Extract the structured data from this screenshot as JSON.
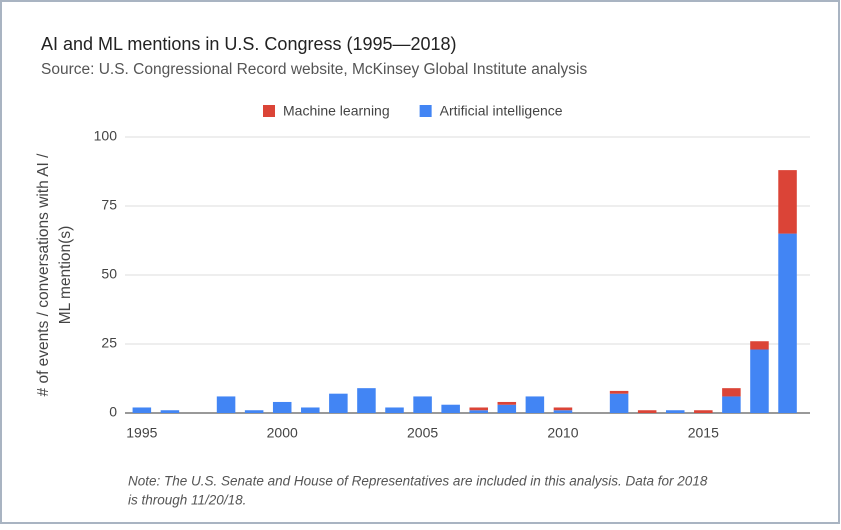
{
  "chart_data": {
    "type": "bar",
    "stacked": true,
    "title": "AI and ML mentions in U.S. Congress (1995—2018)",
    "subtitle": "Source: U.S. Congressional Record website, McKinsey Global Institute analysis",
    "y_label": [
      "# of events / conversations with AI /",
      "ML mention(s)"
    ],
    "note": [
      "Note: The U.S. Senate and House of Representatives are included in this analysis. Data for 2018",
      "is through 11/20/18."
    ],
    "x": [
      1995,
      1996,
      1997,
      1998,
      1999,
      2000,
      2001,
      2002,
      2003,
      2004,
      2005,
      2006,
      2007,
      2008,
      2009,
      2010,
      2011,
      2012,
      2013,
      2014,
      2015,
      2016,
      2017,
      2018
    ],
    "series": [
      {
        "name": "Machine learning",
        "color": "#db4437",
        "values": [
          0,
          0,
          0,
          0,
          0,
          0,
          0,
          0,
          0,
          0,
          0,
          0,
          1,
          1,
          0,
          1,
          0,
          1,
          1,
          0,
          1,
          3,
          3,
          23
        ]
      },
      {
        "name": "Artificial intelligence",
        "color": "#4285f4",
        "values": [
          2,
          1,
          0,
          6,
          1,
          4,
          2,
          7,
          9,
          2,
          6,
          3,
          1,
          3,
          6,
          1,
          0,
          7,
          0,
          1,
          0,
          6,
          23,
          65
        ]
      }
    ],
    "xlim": [
      1994.4,
      2018.8
    ],
    "xticks": [
      1995,
      2000,
      2005,
      2010,
      2015
    ],
    "ylim": [
      0,
      100
    ],
    "yticks": [
      0,
      25,
      50,
      75,
      100
    ],
    "grid": true,
    "legend": "top"
  }
}
